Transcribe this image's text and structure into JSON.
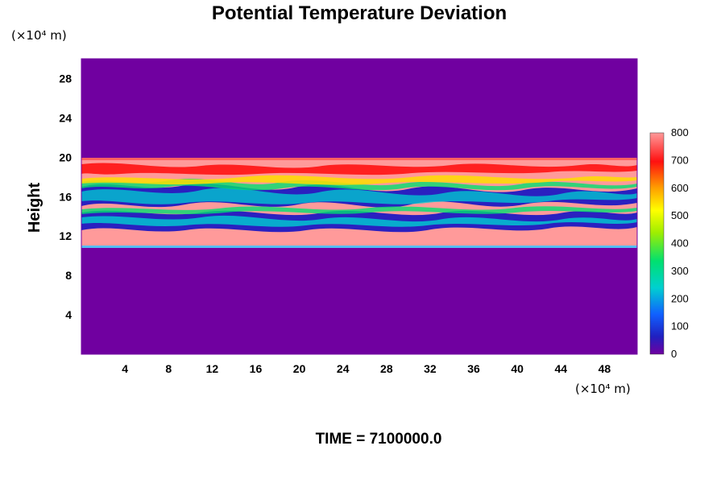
{
  "chart_data": {
    "type": "heatmap",
    "title": "Potential Temperature Deviation",
    "ylabel": "Height",
    "x_unit": "(×10⁴ m)",
    "y_unit": "(×10⁴ m)",
    "xlim": [
      0,
      51
    ],
    "ylim": [
      0,
      30
    ],
    "x_ticks": [
      "4",
      "8",
      "12",
      "16",
      "20",
      "24",
      "28",
      "32",
      "36",
      "40",
      "44",
      "48"
    ],
    "y_ticks": [
      "4",
      "8",
      "12",
      "16",
      "20",
      "24",
      "28"
    ],
    "x_tick_values": [
      4,
      8,
      12,
      16,
      20,
      24,
      28,
      32,
      36,
      40,
      44,
      48
    ],
    "y_tick_values": [
      4,
      8,
      12,
      16,
      20,
      24,
      28
    ],
    "colorbar": {
      "min": 0,
      "max": 800,
      "ticks": [
        "0",
        "100",
        "200",
        "300",
        "400",
        "500",
        "600",
        "700",
        "800"
      ],
      "tick_values": [
        0,
        100,
        200,
        300,
        400,
        500,
        600,
        700,
        800
      ]
    },
    "footer": "TIME = 7100000.0"
  }
}
